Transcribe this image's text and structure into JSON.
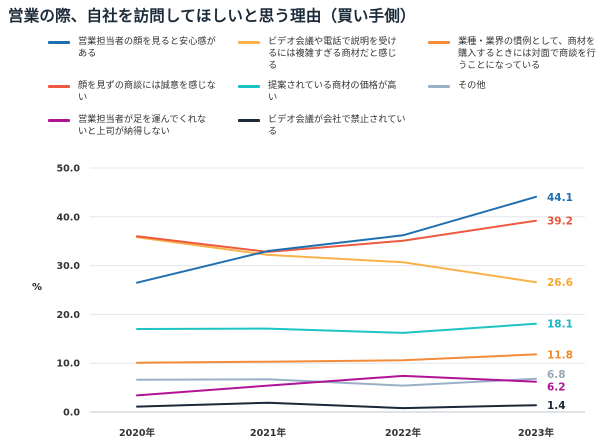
{
  "chart_data": {
    "type": "line",
    "title": "営業の際、自社を訪問してほしいと思う理由（買い手側）",
    "ylabel": "%",
    "xlabel": "",
    "categories": [
      "2020年",
      "2021年",
      "2022年",
      "2023年"
    ],
    "ylim": [
      0,
      50
    ],
    "yticks": [
      "0.0",
      "10.0",
      "20.0",
      "30.0",
      "40.0",
      "50.0"
    ],
    "grid": true,
    "series": [
      {
        "name": "営業担当者の顔を見ると安心感がある",
        "color": "#1f6fb0",
        "values": [
          26.5,
          33.0,
          36.2,
          44.1
        ],
        "label": "44.1",
        "label_color": "#1f6fb0"
      },
      {
        "name": "ビデオ会議や電話で説明を受けるには複雑すぎる商材だと感じる",
        "color": "#f7b24a",
        "values": [
          35.8,
          32.2,
          30.7,
          26.6
        ],
        "label": "26.6",
        "label_color": "#f7a830"
      },
      {
        "name": "業種・業界の慣例として、商材を購入するときには対面で商談を行うことになっている",
        "color": "#f28b3a",
        "values": [
          10.1,
          10.3,
          10.6,
          11.8
        ],
        "label": "11.8",
        "label_color": "#f08a2c"
      },
      {
        "name": "顔を見ずの商談には誠意を感じない",
        "color": "#ee5a40",
        "values": [
          36.0,
          32.8,
          35.1,
          39.2
        ],
        "label": "39.2",
        "label_color": "#e8553d"
      },
      {
        "name": "提案されている商材の価格が高い",
        "color": "#1ec4c4",
        "values": [
          17.0,
          17.1,
          16.2,
          18.1
        ],
        "label": "18.1",
        "label_color": "#16b7c4"
      },
      {
        "name": "その他",
        "color": "#9ab0c6",
        "values": [
          6.6,
          6.7,
          5.4,
          6.8
        ],
        "label": "6.8",
        "label_color": "#9aa8b8"
      },
      {
        "name": "営業担当者が足を運んでくれないと上司が納得しない",
        "color": "#b01396",
        "values": [
          3.4,
          5.4,
          7.4,
          6.2
        ],
        "label": "6.2",
        "label_color": "#b01396"
      },
      {
        "name": "ビデオ会議が会社で禁止されている",
        "color": "#1a2838",
        "values": [
          1.1,
          1.9,
          0.8,
          1.4
        ],
        "label": "1.4",
        "label_color": "#1a2838"
      }
    ]
  },
  "legend": [
    {
      "text": "営業担当者の顔を見ると安心感が\nある",
      "color": "#1f6fb0"
    },
    {
      "text": "ビデオ会議や電話で説明を受け\nるには複雑すぎる商材だと感じ\nる",
      "color": "#f7b24a"
    },
    {
      "text": "業種・業界の慣例として、商材を\n購入するときには対面で商談を行\nうことになっている",
      "color": "#f28b3a"
    },
    {
      "text": "顔を見ずの商談には誠意を感じな\nい",
      "color": "#ee5a40"
    },
    {
      "text": "提案されている商材の価格が高\nい",
      "color": "#1ec4c4"
    },
    {
      "text": "その他",
      "color": "#9ab0c6"
    },
    {
      "text": "営業担当者が足を運んでくれな\nいと上司が納得しない",
      "color": "#b01396"
    },
    {
      "text": "ビデオ会議が会社で禁止されてい\nる",
      "color": "#1a2838"
    }
  ]
}
